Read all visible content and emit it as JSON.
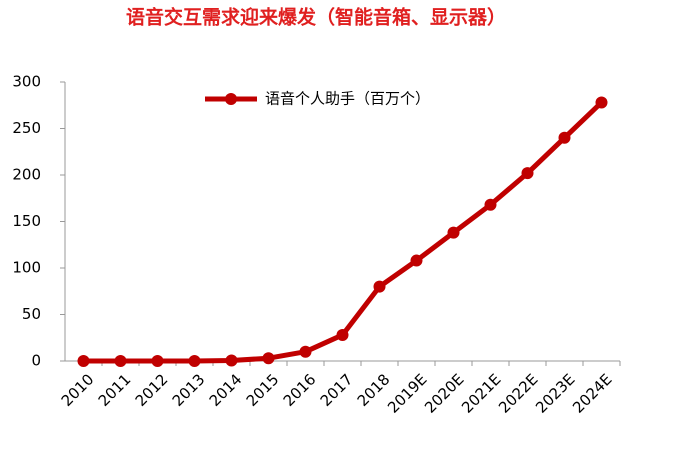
{
  "chart_data": {
    "type": "line",
    "title": "语音交互需求迎来爆发（智能音箱、显示器）",
    "categories": [
      "2010",
      "2011",
      "2012",
      "2013",
      "2014",
      "2015",
      "2016",
      "2017",
      "2018",
      "2019E",
      "2020E",
      "2021E",
      "2022E",
      "2023E",
      "2024E"
    ],
    "series": [
      {
        "name": "语音个人助手（百万个）",
        "color": "#c00000",
        "values": [
          0,
          0,
          0,
          0,
          0.5,
          3,
          10,
          28,
          80,
          108,
          138,
          168,
          202,
          240,
          278
        ]
      }
    ],
    "ylim": [
      0,
      300
    ],
    "yticks": [
      0,
      50,
      100,
      150,
      200,
      250,
      300
    ],
    "grid": false,
    "legend": "top"
  }
}
